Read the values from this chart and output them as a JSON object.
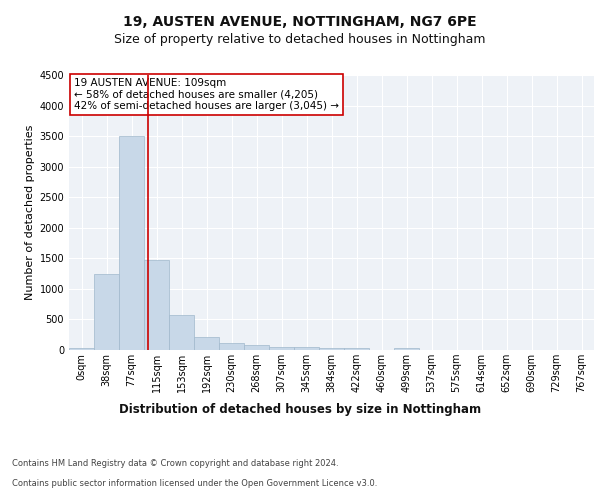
{
  "title1": "19, AUSTEN AVENUE, NOTTINGHAM, NG7 6PE",
  "title2": "Size of property relative to detached houses in Nottingham",
  "xlabel": "Distribution of detached houses by size in Nottingham",
  "ylabel": "Number of detached properties",
  "bar_labels": [
    "0sqm",
    "38sqm",
    "77sqm",
    "115sqm",
    "153sqm",
    "192sqm",
    "230sqm",
    "268sqm",
    "307sqm",
    "345sqm",
    "384sqm",
    "422sqm",
    "460sqm",
    "499sqm",
    "537sqm",
    "575sqm",
    "614sqm",
    "652sqm",
    "690sqm",
    "729sqm",
    "767sqm"
  ],
  "bar_values": [
    30,
    1250,
    3500,
    1470,
    580,
    220,
    115,
    85,
    50,
    45,
    30,
    30,
    5,
    30,
    0,
    0,
    0,
    0,
    0,
    0,
    0
  ],
  "bar_color": "#c8d8e8",
  "bar_edge_color": "#a0b8cc",
  "vline_x": 2.65,
  "vline_color": "#cc0000",
  "annotation_text": "19 AUSTEN AVENUE: 109sqm\n← 58% of detached houses are smaller (4,205)\n42% of semi-detached houses are larger (3,045) →",
  "annotation_box_color": "#ffffff",
  "annotation_box_edge": "#cc0000",
  "ylim": [
    0,
    4500
  ],
  "yticks": [
    0,
    500,
    1000,
    1500,
    2000,
    2500,
    3000,
    3500,
    4000,
    4500
  ],
  "footer1": "Contains HM Land Registry data © Crown copyright and database right 2024.",
  "footer2": "Contains public sector information licensed under the Open Government Licence v3.0.",
  "bg_color": "#ffffff",
  "plot_bg_color": "#eef2f7",
  "grid_color": "#ffffff",
  "title1_fontsize": 10,
  "title2_fontsize": 9,
  "tick_fontsize": 7,
  "ylabel_fontsize": 8,
  "xlabel_fontsize": 8.5,
  "annotation_fontsize": 7.5,
  "footer_fontsize": 6
}
